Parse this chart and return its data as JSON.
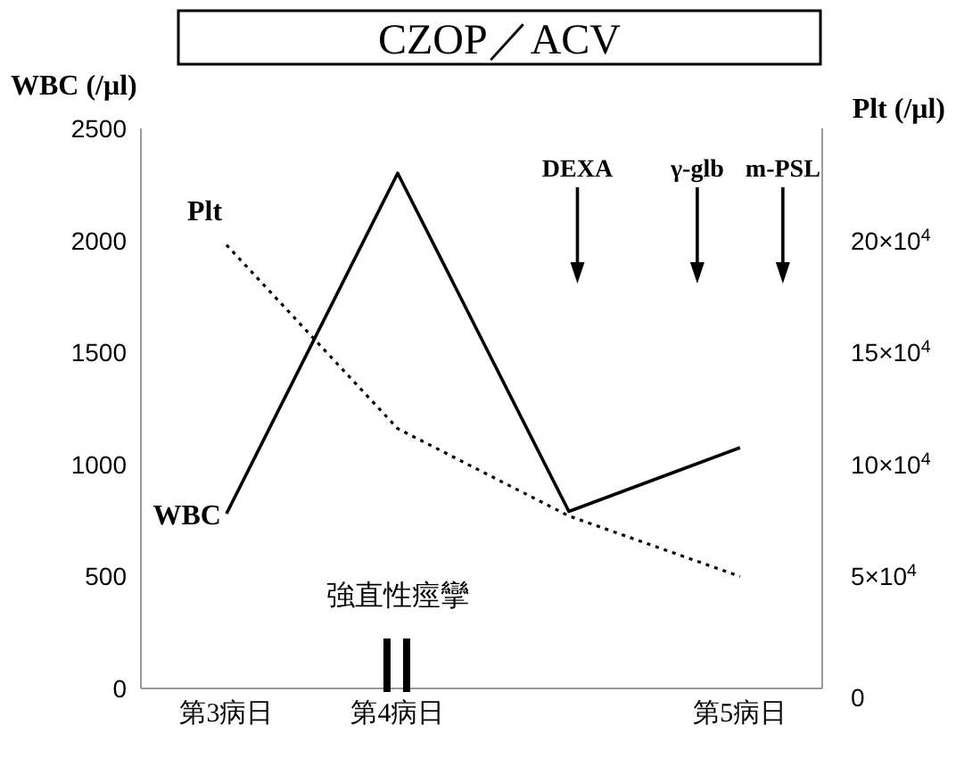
{
  "chart_data": {
    "type": "line",
    "title": "CZOP／ACV",
    "ylabel": "WBC (/μl)",
    "y2label": "Plt (/μl)",
    "categories": [
      "第3病日",
      "第4病日",
      null,
      "第5病日"
    ],
    "ylim": [
      0,
      2500
    ],
    "yticks": [
      0,
      500,
      1000,
      1500,
      2000,
      2500
    ],
    "y2lim": [
      0,
      250000
    ],
    "y2ticks": [
      {
        "value": 0,
        "label": "0"
      },
      {
        "value": 50000,
        "label": "5×10$^{4}$"
      },
      {
        "value": 100000,
        "label": "10×10$^{4}$"
      },
      {
        "value": 150000,
        "label": "15×10$^{4}$"
      },
      {
        "value": 200000,
        "label": "20×10$^{4}$"
      }
    ],
    "series": [
      {
        "name": "WBC",
        "color": "#000000",
        "values": [
          780,
          2300,
          790,
          1075
        ],
        "line_style": "solid"
      },
      {
        "name": "Plt",
        "color": "#000000",
        "values": [
          198000,
          116000,
          77000,
          50000
        ],
        "axis": "y2",
        "line_style": "dotted"
      }
    ],
    "annotations": [
      "DEXA",
      "γ-glb",
      "m-PSL",
      "強直性痙攣"
    ],
    "marker": "none"
  }
}
